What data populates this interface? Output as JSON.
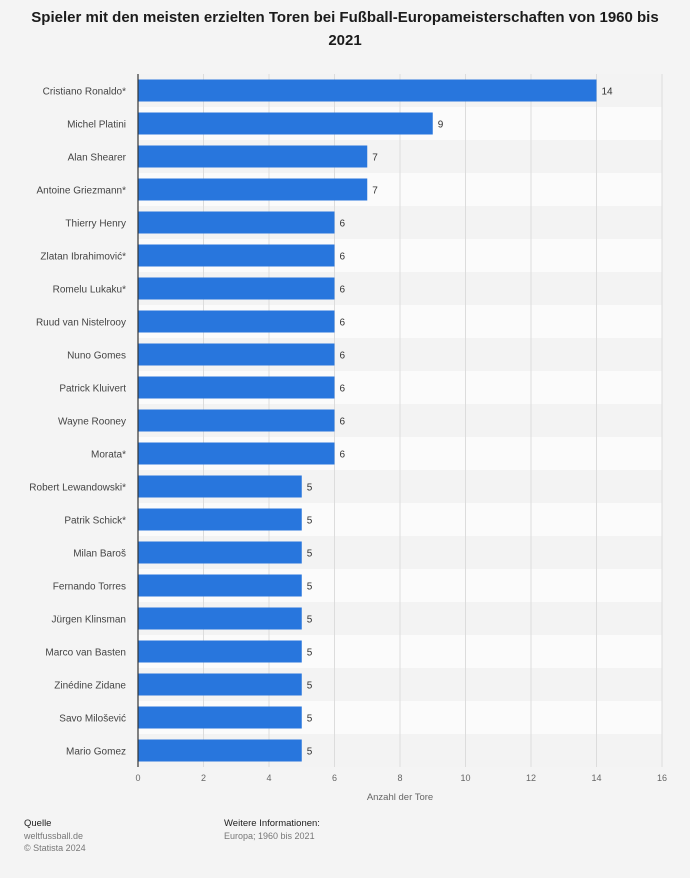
{
  "title": "Spieler mit den meisten erzielten Toren bei Fußball-Europameisterschaften von 1960 bis 2021",
  "colors": {
    "bar": "#2876dd",
    "band_dark": "#f3f3f3",
    "band_light": "#fbfbfb",
    "grid": "#dcdcdc",
    "axis": "#333333"
  },
  "footer": {
    "source_heading": "Quelle",
    "source_line1": "weltfussball.de",
    "source_line2": "© Statista 2024",
    "info_heading": "Weitere Informationen:",
    "info_line1": "Europa; 1960 bis 2021"
  },
  "chart_data": {
    "type": "bar",
    "orientation": "horizontal",
    "categories": [
      "Cristiano Ronaldo*",
      "Michel Platini",
      "Alan Shearer",
      "Antoine Griezmann*",
      "Thierry Henry",
      "Zlatan Ibrahimović*",
      "Romelu Lukaku*",
      "Ruud van Nistelrooy",
      "Nuno Gomes",
      "Patrick Kluivert",
      "Wayne Rooney",
      "Morata*",
      "Robert Lewandowski*",
      "Patrik Schick*",
      "Milan Baroš",
      "Fernando Torres",
      "Jürgen Klinsman",
      "Marco van Basten",
      "Zinédine Zidane",
      "Savo Milošević",
      "Mario Gomez"
    ],
    "values": [
      14,
      9,
      7,
      7,
      6,
      6,
      6,
      6,
      6,
      6,
      6,
      6,
      5,
      5,
      5,
      5,
      5,
      5,
      5,
      5,
      5
    ],
    "xlabel": "Anzahl der Tore",
    "xlim": [
      0,
      16
    ],
    "xticks": [
      0,
      2,
      4,
      6,
      8,
      10,
      12,
      14,
      16
    ],
    "grid": true,
    "data_labels": true
  }
}
